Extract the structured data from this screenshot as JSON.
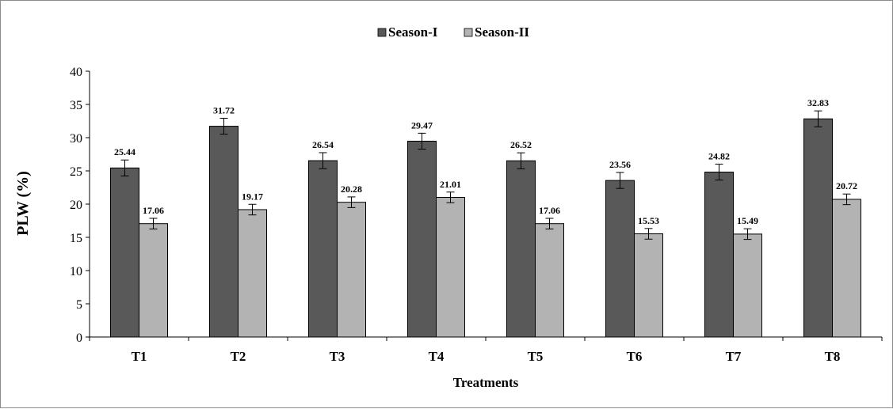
{
  "chart_data": {
    "type": "bar",
    "title": "",
    "xlabel": "Treatments",
    "ylabel": "PLW (%)",
    "ylim": [
      0,
      40
    ],
    "yticks": [
      0,
      5,
      10,
      15,
      20,
      25,
      30,
      35,
      40
    ],
    "grid": false,
    "legend_position": "top-center",
    "categories": [
      "T1",
      "T2",
      "T3",
      "T4",
      "T5",
      "T6",
      "T7",
      "T8"
    ],
    "series": [
      {
        "name": "Season-I",
        "color": "#595959",
        "values": [
          25.44,
          31.72,
          26.54,
          29.47,
          26.52,
          23.56,
          24.82,
          32.83
        ],
        "value_labels": [
          "25.44",
          "31.72",
          "26.54",
          "29.47",
          "26.52",
          "23.56",
          "24.82",
          "32.83"
        ],
        "error": [
          1.2,
          1.2,
          1.2,
          1.2,
          1.2,
          1.2,
          1.2,
          1.2
        ]
      },
      {
        "name": "Season-II",
        "color": "#b3b3b3",
        "values": [
          17.06,
          19.17,
          20.28,
          21.01,
          17.06,
          15.53,
          15.49,
          20.72
        ],
        "value_labels": [
          "17.06",
          "19.17",
          "20.28",
          "21.01",
          "17.06",
          "15.53",
          "15.49",
          "20.72"
        ],
        "error": [
          0.8,
          0.8,
          0.8,
          0.8,
          0.8,
          0.8,
          0.8,
          0.8
        ]
      }
    ]
  }
}
